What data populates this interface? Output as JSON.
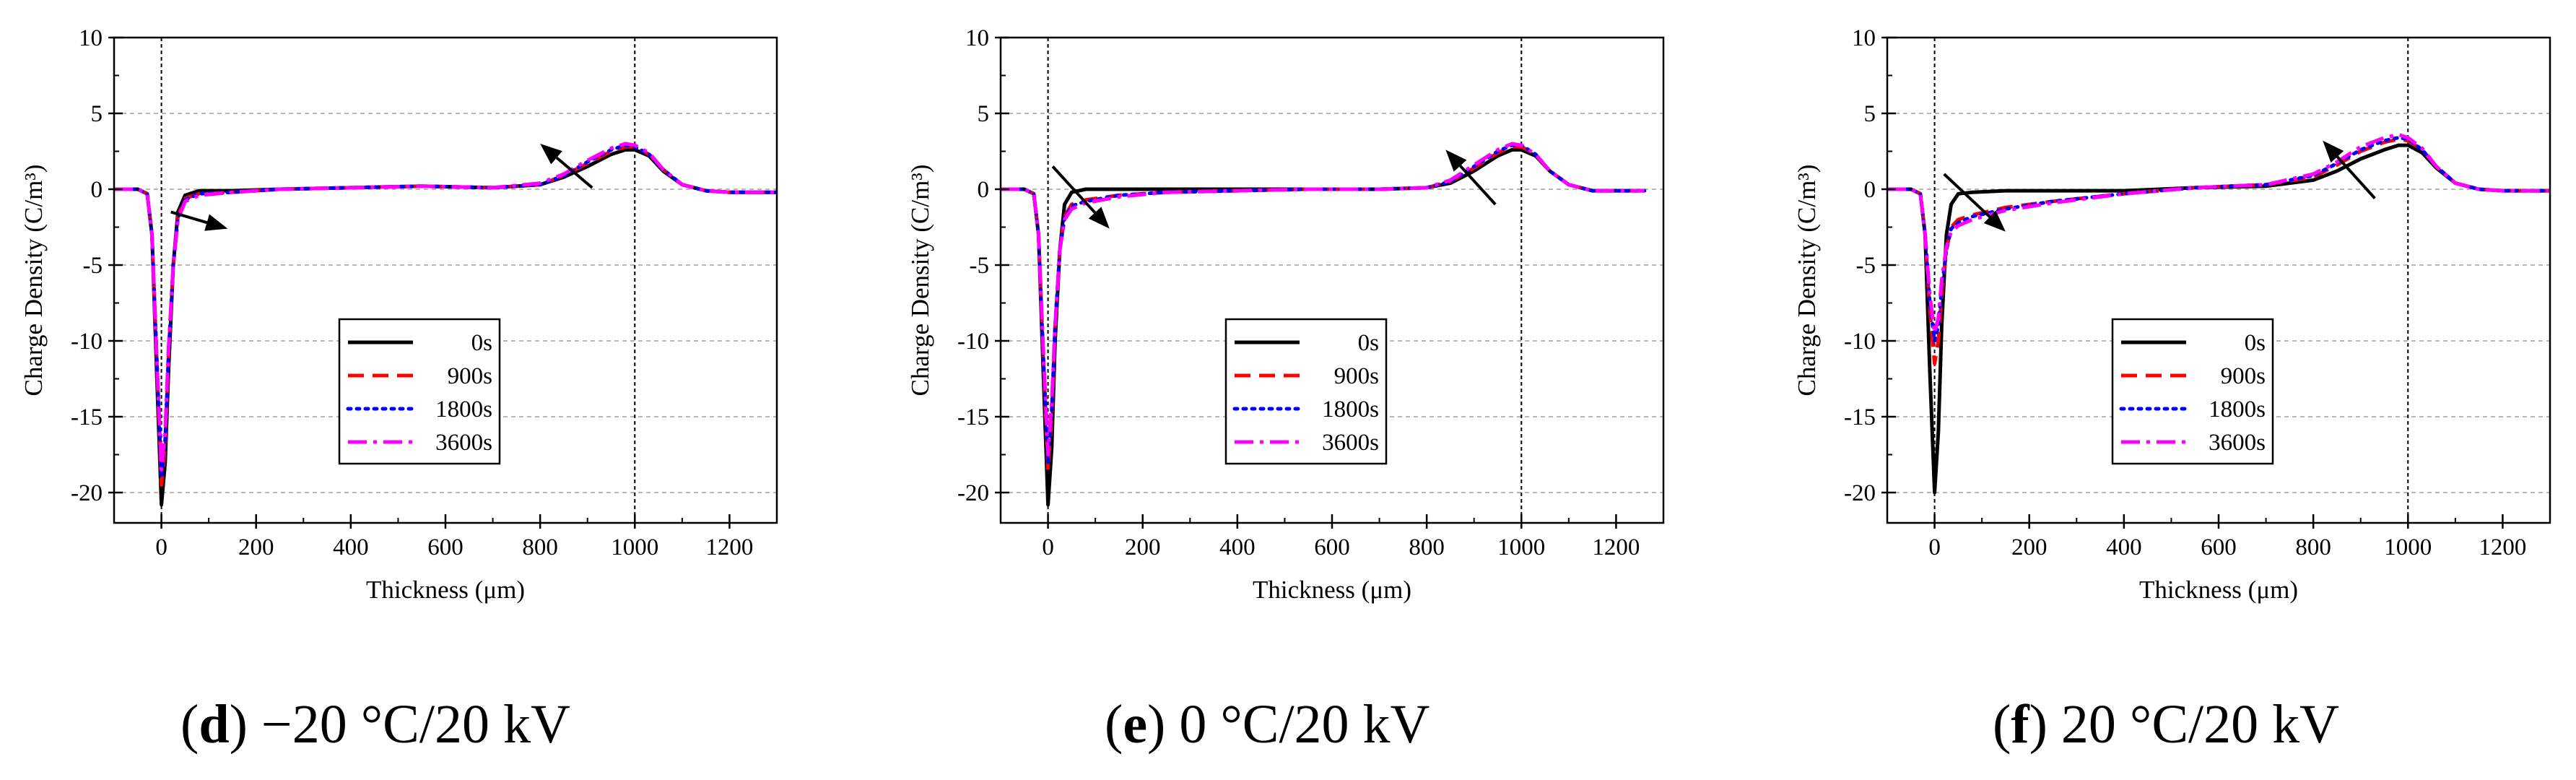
{
  "chart_data": [
    {
      "type": "line",
      "caption_letter": "d",
      "caption_rest": ") −20 °C/20 kV",
      "xlabel": "Thickness (μm)",
      "ylabel": "Charge Density (C/m³)",
      "xlim": [
        -100,
        1300
      ],
      "ylim": [
        -22,
        10
      ],
      "xticks": [
        "0",
        "200",
        "400",
        "600",
        "800",
        "1000",
        "1200"
      ],
      "yticks": [
        "-20",
        "-15",
        "-10",
        "-5",
        "0",
        "5",
        "10"
      ],
      "grid": true,
      "legend": {
        "placement": "lower-middle",
        "entries": [
          "0s",
          "900s",
          "1800s",
          "3600s"
        ]
      },
      "ref_lines_x": [
        0,
        1000
      ],
      "arrows": [
        {
          "from": [
            20,
            -1.5
          ],
          "to": [
            140,
            -2.6
          ]
        },
        {
          "from": [
            910,
            0.1
          ],
          "to": [
            800,
            3.0
          ]
        }
      ],
      "series": [
        {
          "name": "0s",
          "color": "#000000",
          "dash": "solid",
          "x": [
            -100,
            -50,
            -30,
            -20,
            -10,
            0,
            8,
            15,
            25,
            35,
            50,
            80,
            150,
            250,
            400,
            550,
            700,
            800,
            850,
            900,
            950,
            980,
            1000,
            1030,
            1060,
            1100,
            1150,
            1200,
            1250,
            1300
          ],
          "y": [
            0,
            0,
            -0.3,
            -3,
            -12,
            -20.8,
            -18,
            -12,
            -5,
            -1.5,
            -0.4,
            -0.1,
            -0.1,
            0.0,
            0.1,
            0.2,
            0.1,
            0.3,
            0.8,
            1.5,
            2.3,
            2.6,
            2.6,
            2.2,
            1.2,
            0.3,
            -0.1,
            -0.2,
            -0.2,
            -0.2
          ]
        },
        {
          "name": "900s",
          "color": "#ff0000",
          "dash": "dashed",
          "x": [
            -100,
            -50,
            -30,
            -20,
            -10,
            0,
            8,
            15,
            25,
            35,
            50,
            80,
            150,
            250,
            400,
            550,
            700,
            800,
            850,
            900,
            950,
            980,
            1000,
            1030,
            1060,
            1100,
            1150,
            1200,
            1250,
            1300
          ],
          "y": [
            0,
            0,
            -0.3,
            -3,
            -11,
            -19.5,
            -17,
            -11,
            -5,
            -1.8,
            -0.6,
            -0.3,
            -0.2,
            0.0,
            0.1,
            0.2,
            0.1,
            0.3,
            0.9,
            1.7,
            2.5,
            2.8,
            2.8,
            2.3,
            1.3,
            0.3,
            -0.1,
            -0.2,
            -0.2,
            -0.2
          ]
        },
        {
          "name": "1800s",
          "color": "#0000ff",
          "dash": "dotted",
          "x": [
            -100,
            -50,
            -30,
            -20,
            -10,
            0,
            8,
            15,
            25,
            35,
            50,
            80,
            150,
            250,
            400,
            550,
            700,
            800,
            850,
            900,
            950,
            980,
            1000,
            1030,
            1060,
            1100,
            1150,
            1200,
            1250,
            1300
          ],
          "y": [
            0,
            0,
            -0.3,
            -3,
            -11,
            -19,
            -16.5,
            -11,
            -5,
            -1.9,
            -0.7,
            -0.3,
            -0.2,
            0.0,
            0.1,
            0.2,
            0.1,
            0.3,
            0.9,
            1.8,
            2.6,
            2.9,
            2.8,
            2.3,
            1.3,
            0.3,
            -0.1,
            -0.2,
            -0.2,
            -0.2
          ]
        },
        {
          "name": "3600s",
          "color": "#ff00ff",
          "dash": "dashdot",
          "x": [
            -100,
            -50,
            -30,
            -20,
            -10,
            0,
            8,
            15,
            25,
            35,
            50,
            80,
            150,
            250,
            400,
            550,
            700,
            800,
            850,
            900,
            950,
            980,
            1000,
            1030,
            1060,
            1100,
            1150,
            1200,
            1250,
            1300
          ],
          "y": [
            0,
            0,
            -0.3,
            -3,
            -11,
            -18.5,
            -16,
            -10.5,
            -5,
            -2.0,
            -0.8,
            -0.4,
            -0.2,
            0.0,
            0.1,
            0.2,
            0.1,
            0.4,
            1.0,
            1.9,
            2.7,
            3.0,
            2.9,
            2.4,
            1.3,
            0.3,
            -0.1,
            -0.2,
            -0.2,
            -0.2
          ]
        }
      ]
    },
    {
      "type": "line",
      "caption_letter": "e",
      "caption_rest": ") 0 °C/20 kV",
      "xlabel": "Thickness (μm)",
      "ylabel": "Charge Density (C/m³)",
      "xlim": [
        -100,
        1300
      ],
      "ylim": [
        -22,
        10
      ],
      "xticks": [
        "0",
        "200",
        "400",
        "600",
        "800",
        "1000",
        "1200"
      ],
      "yticks": [
        "-20",
        "-15",
        "-10",
        "-5",
        "0",
        "5",
        "10"
      ],
      "grid": true,
      "legend": {
        "placement": "lower-middle",
        "entries": [
          "0s",
          "900s",
          "1800s",
          "3600s"
        ]
      },
      "ref_lines_x": [
        0,
        1000
      ],
      "arrows": [
        {
          "from": [
            10,
            1.5
          ],
          "to": [
            130,
            -2.6
          ]
        },
        {
          "from": [
            945,
            -1.0
          ],
          "to": [
            840,
            2.6
          ]
        }
      ],
      "series": [
        {
          "name": "0s",
          "color": "#000000",
          "dash": "solid",
          "x": [
            -100,
            -50,
            -30,
            -20,
            -10,
            0,
            8,
            15,
            25,
            35,
            50,
            80,
            150,
            250,
            400,
            550,
            700,
            800,
            850,
            900,
            950,
            980,
            1000,
            1030,
            1060,
            1100,
            1150,
            1200,
            1260
          ],
          "y": [
            0,
            0,
            -0.3,
            -3,
            -12,
            -20.8,
            -17,
            -10,
            -4,
            -1,
            -0.2,
            0.0,
            0.0,
            0.0,
            0.0,
            0.0,
            0.0,
            0.1,
            0.4,
            1.2,
            2.2,
            2.6,
            2.6,
            2.2,
            1.2,
            0.3,
            -0.1,
            -0.1,
            -0.1
          ]
        },
        {
          "name": "900s",
          "color": "#ff0000",
          "dash": "dashed",
          "x": [
            -100,
            -50,
            -30,
            -20,
            -10,
            0,
            8,
            15,
            25,
            35,
            50,
            80,
            150,
            250,
            400,
            550,
            700,
            800,
            850,
            900,
            950,
            980,
            1000,
            1030,
            1060,
            1100,
            1150,
            1200,
            1260
          ],
          "y": [
            0,
            0,
            -0.3,
            -3,
            -11,
            -18.5,
            -15,
            -9,
            -4,
            -1.8,
            -1.0,
            -0.7,
            -0.4,
            -0.2,
            -0.1,
            0.0,
            0.0,
            0.1,
            0.5,
            1.4,
            2.4,
            2.8,
            2.8,
            2.3,
            1.2,
            0.3,
            -0.1,
            -0.1,
            -0.1
          ]
        },
        {
          "name": "1800s",
          "color": "#0000ff",
          "dash": "dotted",
          "x": [
            -100,
            -50,
            -30,
            -20,
            -10,
            0,
            8,
            15,
            25,
            35,
            50,
            80,
            150,
            250,
            400,
            550,
            700,
            800,
            850,
            900,
            950,
            980,
            1000,
            1030,
            1060,
            1100,
            1150,
            1200,
            1260
          ],
          "y": [
            0,
            0,
            -0.3,
            -3,
            -11,
            -18,
            -14.5,
            -9,
            -4,
            -1.9,
            -1.1,
            -0.8,
            -0.4,
            -0.2,
            -0.1,
            0.0,
            0.0,
            0.1,
            0.5,
            1.5,
            2.5,
            2.9,
            2.9,
            2.3,
            1.2,
            0.3,
            -0.1,
            -0.1,
            -0.1
          ]
        },
        {
          "name": "3600s",
          "color": "#ff00ff",
          "dash": "dashdot",
          "x": [
            -100,
            -50,
            -30,
            -20,
            -10,
            0,
            8,
            15,
            25,
            35,
            50,
            80,
            150,
            250,
            400,
            550,
            700,
            800,
            850,
            900,
            950,
            980,
            1000,
            1030,
            1060,
            1100,
            1150,
            1200,
            1260
          ],
          "y": [
            0,
            0,
            -0.3,
            -3,
            -10.5,
            -17.5,
            -14,
            -9,
            -4,
            -2.0,
            -1.3,
            -0.9,
            -0.5,
            -0.2,
            -0.1,
            0.0,
            0.0,
            0.1,
            0.6,
            1.6,
            2.6,
            3.0,
            2.9,
            2.3,
            1.2,
            0.3,
            -0.1,
            -0.1,
            -0.1
          ]
        }
      ]
    },
    {
      "type": "line",
      "caption_letter": "f",
      "caption_rest": ") 20 °C/20 kV",
      "xlabel": "Thickness (μm)",
      "ylabel": "Charge Density (C/m³)",
      "xlim": [
        -100,
        1300
      ],
      "ylim": [
        -22,
        10
      ],
      "xticks": [
        "0",
        "200",
        "400",
        "600",
        "800",
        "1000",
        "1200"
      ],
      "yticks": [
        "-20",
        "-15",
        "-10",
        "-5",
        "0",
        "5",
        "10"
      ],
      "grid": true,
      "legend": {
        "placement": "lower-middle",
        "entries": [
          "0s",
          "900s",
          "1800s",
          "3600s"
        ]
      },
      "ref_lines_x": [
        0,
        1000
      ],
      "arrows": [
        {
          "from": [
            20,
            1.0
          ],
          "to": [
            150,
            -2.8
          ]
        },
        {
          "from": [
            930,
            -0.6
          ],
          "to": [
            820,
            3.2
          ]
        }
      ],
      "series": [
        {
          "name": "0s",
          "color": "#000000",
          "dash": "solid",
          "x": [
            -100,
            -50,
            -30,
            -20,
            -10,
            0,
            8,
            15,
            25,
            35,
            50,
            80,
            150,
            250,
            400,
            550,
            700,
            800,
            850,
            900,
            950,
            980,
            1000,
            1030,
            1060,
            1100,
            1150,
            1200,
            1300
          ],
          "y": [
            0,
            0,
            -0.3,
            -3,
            -12,
            -20,
            -16,
            -9,
            -3,
            -1,
            -0.3,
            -0.2,
            -0.1,
            -0.1,
            -0.1,
            0.1,
            0.2,
            0.6,
            1.2,
            2.0,
            2.6,
            2.9,
            2.9,
            2.4,
            1.4,
            0.4,
            0.0,
            -0.1,
            -0.1
          ]
        },
        {
          "name": "900s",
          "color": "#ff0000",
          "dash": "dashed",
          "x": [
            -100,
            -50,
            -30,
            -20,
            -10,
            0,
            8,
            15,
            25,
            35,
            50,
            80,
            150,
            250,
            400,
            550,
            700,
            800,
            850,
            900,
            950,
            980,
            1000,
            1030,
            1060,
            1100,
            1150,
            1200,
            1300
          ],
          "y": [
            0,
            0,
            -0.3,
            -3,
            -8,
            -11.5,
            -10,
            -7,
            -4,
            -2.5,
            -2.0,
            -1.7,
            -1.2,
            -0.8,
            -0.3,
            0.1,
            0.3,
            0.8,
            1.6,
            2.5,
            3.1,
            3.3,
            3.2,
            2.6,
            1.5,
            0.4,
            0.0,
            -0.1,
            -0.1
          ]
        },
        {
          "name": "1800s",
          "color": "#0000ff",
          "dash": "dotted",
          "x": [
            -100,
            -50,
            -30,
            -20,
            -10,
            0,
            8,
            15,
            25,
            35,
            50,
            80,
            150,
            250,
            400,
            550,
            700,
            800,
            850,
            900,
            950,
            980,
            1000,
            1030,
            1060,
            1100,
            1150,
            1200,
            1300
          ],
          "y": [
            0,
            0,
            -0.3,
            -3,
            -7.5,
            -10,
            -9,
            -6.5,
            -4,
            -2.6,
            -2.2,
            -1.8,
            -1.3,
            -0.8,
            -0.3,
            0.1,
            0.3,
            0.9,
            1.7,
            2.6,
            3.2,
            3.4,
            3.3,
            2.6,
            1.5,
            0.4,
            0.0,
            -0.1,
            -0.1
          ]
        },
        {
          "name": "3600s",
          "color": "#ff00ff",
          "dash": "dashdot",
          "x": [
            -100,
            -50,
            -30,
            -20,
            -10,
            0,
            8,
            15,
            25,
            35,
            50,
            80,
            150,
            250,
            400,
            550,
            700,
            800,
            850,
            900,
            950,
            980,
            1000,
            1030,
            1060,
            1100,
            1150,
            1200,
            1300
          ],
          "y": [
            0,
            0,
            -0.3,
            -3,
            -7,
            -9.5,
            -8.5,
            -6,
            -3.8,
            -2.8,
            -2.4,
            -2.0,
            -1.4,
            -0.9,
            -0.3,
            0.1,
            0.3,
            1.0,
            1.8,
            2.8,
            3.4,
            3.6,
            3.4,
            2.7,
            1.5,
            0.4,
            0.0,
            -0.1,
            -0.1
          ]
        }
      ]
    }
  ]
}
